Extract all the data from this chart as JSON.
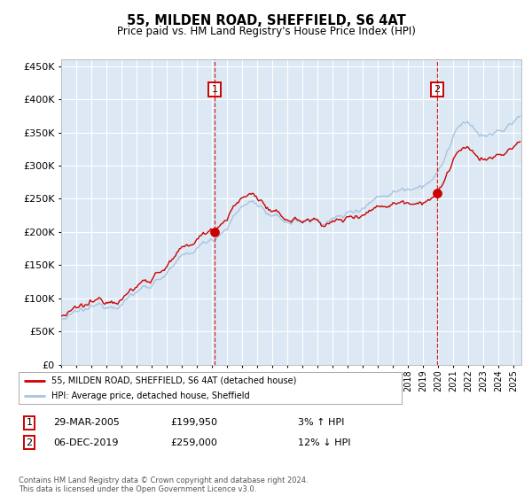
{
  "title": "55, MILDEN ROAD, SHEFFIELD, S6 4AT",
  "subtitle": "Price paid vs. HM Land Registry's House Price Index (HPI)",
  "ylim": [
    0,
    460000
  ],
  "yticks": [
    0,
    50000,
    100000,
    150000,
    200000,
    250000,
    300000,
    350000,
    400000,
    450000
  ],
  "fig_bg_color": "#ffffff",
  "plot_bg_color": "#dce9f5",
  "grid_color": "#ffffff",
  "hpi_color": "#a8c4e0",
  "price_color": "#cc0000",
  "vline_color": "#cc0000",
  "transaction1_date": "29-MAR-2005",
  "transaction1_price": 199950,
  "transaction2_date": "06-DEC-2019",
  "transaction2_price": 259000,
  "transaction1_hpi_note": "3% ↑ HPI",
  "transaction2_hpi_note": "12% ↓ HPI",
  "legend_label1": "55, MILDEN ROAD, SHEFFIELD, S6 4AT (detached house)",
  "legend_label2": "HPI: Average price, detached house, Sheffield",
  "footnote": "Contains HM Land Registry data © Crown copyright and database right 2024.\nThis data is licensed under the Open Government Licence v3.0."
}
